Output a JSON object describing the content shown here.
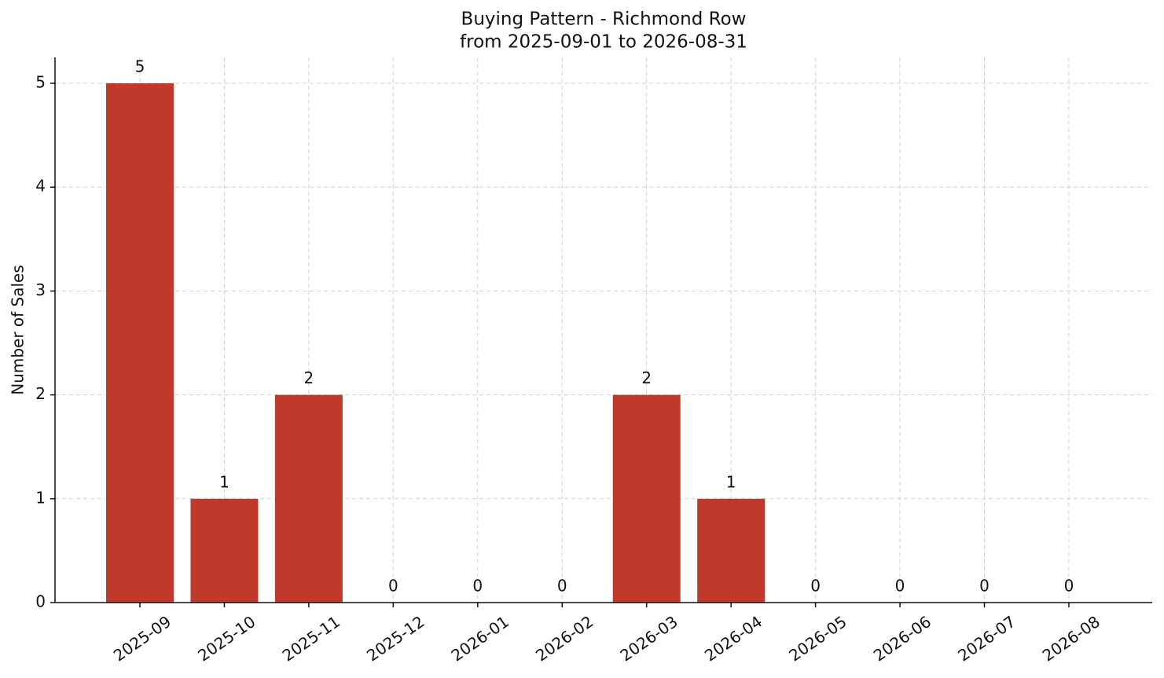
{
  "chart_data": {
    "type": "bar",
    "title": "Buying Pattern - Richmond Row",
    "subtitle": "from 2025-09-01 to 2026-08-31",
    "y_label": "Number of Sales",
    "categories": [
      "2025-09",
      "2025-10",
      "2025-11",
      "2025-12",
      "2026-01",
      "2026-02",
      "2026-03",
      "2026-04",
      "2026-05",
      "2026-06",
      "2026-07",
      "2026-08"
    ],
    "values": [
      5,
      1,
      2,
      0,
      0,
      0,
      2,
      1,
      0,
      0,
      0,
      0
    ],
    "color": "#c0392b",
    "ylim": [
      0,
      5.25
    ],
    "yticks": [
      0,
      1,
      2,
      3,
      4,
      5
    ],
    "grid": true
  }
}
